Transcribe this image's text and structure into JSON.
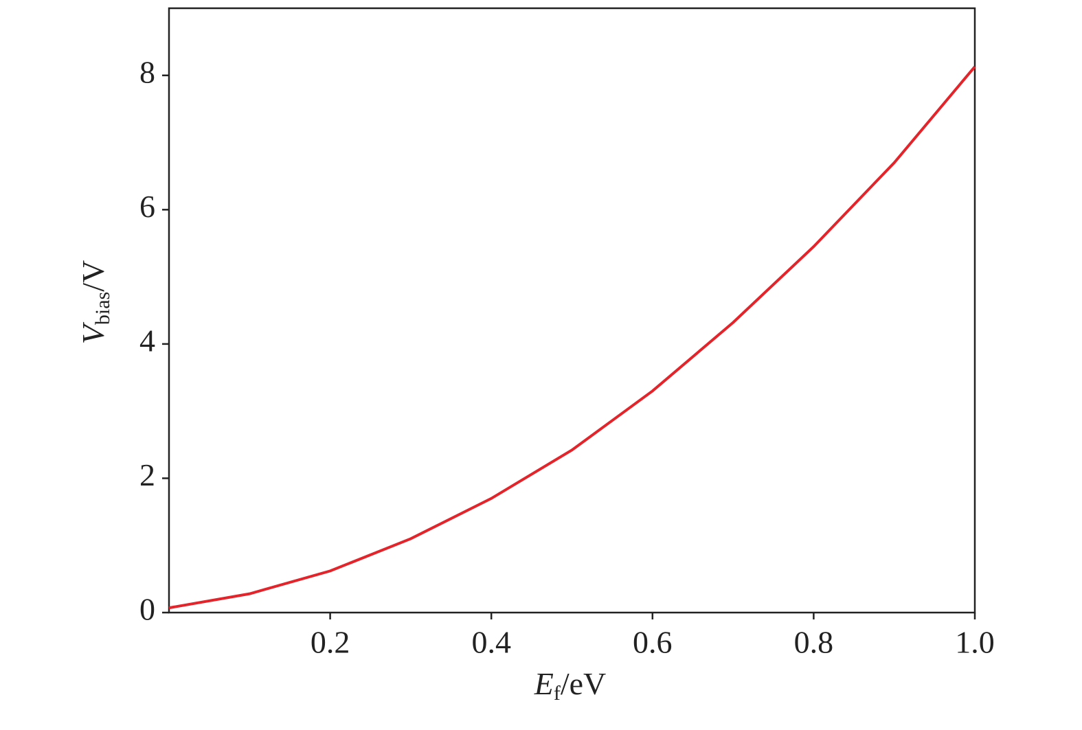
{
  "chart_data": {
    "type": "line",
    "xlabel": {
      "symbol": "E",
      "subscript": "f",
      "unit": "/eV"
    },
    "ylabel": {
      "symbol": "V",
      "subscript": "bias",
      "unit": "/V"
    },
    "x": [
      0,
      0.1,
      0.2,
      0.3,
      0.4,
      0.5,
      0.6,
      0.7,
      0.8,
      0.9,
      1.0
    ],
    "series": [
      {
        "color": "#e3242b",
        "values": [
          0.07,
          0.28,
          0.62,
          1.1,
          1.7,
          2.42,
          3.3,
          4.32,
          5.45,
          6.7,
          8.13
        ]
      }
    ],
    "xlim": [
      0,
      1
    ],
    "xticks": [
      0.2,
      0.4,
      0.6,
      0.8,
      {
        "value": 1,
        "label": "1.0"
      }
    ],
    "ylim": [
      0,
      9
    ],
    "yticks": [
      0,
      2,
      4,
      6,
      8
    ]
  }
}
